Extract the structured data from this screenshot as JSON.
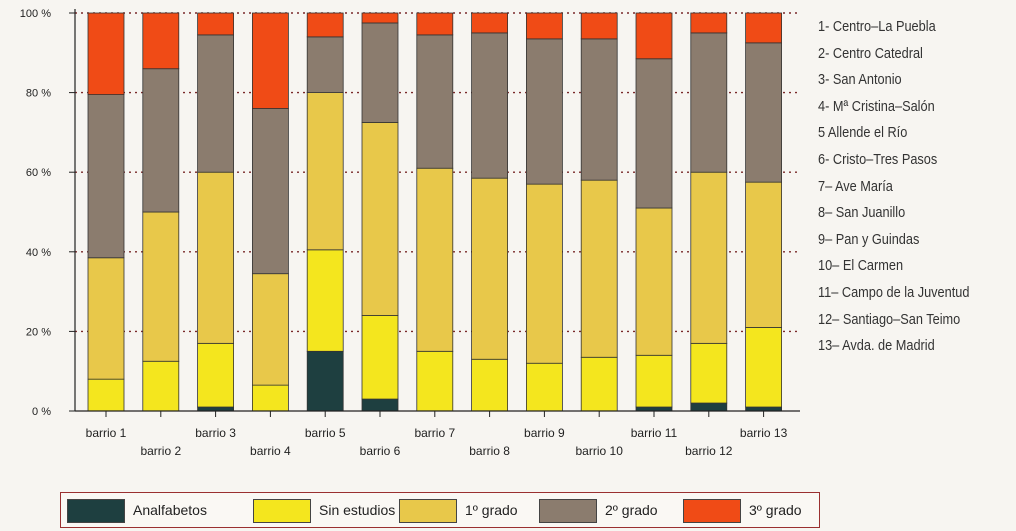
{
  "chart_data": {
    "type": "bar",
    "stacked": true,
    "categories": [
      "barrio 1",
      "barrio 2",
      "barrio 3",
      "barrio 4",
      "barrio 5",
      "barrio 6",
      "barrio 7",
      "barrio 8",
      "barrio 9",
      "barrio 10",
      "barrio 11",
      "barrio 12",
      "barrio 13"
    ],
    "series": [
      {
        "name": "Analfabetos",
        "color": "#1e3f40",
        "values": [
          0,
          0,
          1,
          0,
          15,
          3,
          0,
          0,
          0,
          0,
          1,
          2,
          1
        ]
      },
      {
        "name": "Sin estudios",
        "color": "#f4e61e",
        "values": [
          8,
          12.5,
          16,
          6.5,
          25.5,
          21,
          15,
          13,
          12,
          13.5,
          13,
          15,
          20
        ]
      },
      {
        "name": "1º grado",
        "color": "#e8c84a",
        "values": [
          30.5,
          37.5,
          43,
          28,
          39.5,
          48.5,
          46,
          45.5,
          45,
          44.5,
          37,
          43,
          36.5
        ]
      },
      {
        "name": "2º grado",
        "color": "#8b7c6e",
        "values": [
          41,
          36,
          34.5,
          41.5,
          14,
          25,
          33.5,
          36.5,
          36.5,
          35.5,
          37.5,
          35,
          35
        ]
      },
      {
        "name": "3º grado",
        "color": "#f04b16",
        "values": [
          20.5,
          14,
          5.5,
          24,
          6,
          2.5,
          5.5,
          5,
          6.5,
          6.5,
          11.5,
          5,
          7.5
        ]
      }
    ],
    "y_ticks": [
      "0 %",
      "20 %",
      "40 %",
      "60 %",
      "80 %",
      "100 %"
    ],
    "ylim": [
      0,
      100
    ],
    "grid": "dotted horizontal",
    "legend_position": "bottom",
    "key": [
      "1- Centro–La Puebla",
      "2- Centro Catedral",
      "3- San Antonio",
      "4- Mª Cristina–Salón",
      "5 Allende el Río",
      "6- Cristo–Tres Pasos",
      "7– Ave María",
      "8– San Juanillo",
      "9– Pan y Guindas",
      "10– El Carmen",
      "11– Campo de la Juventud",
      "12– Santiago–San Teimo",
      "13– Avda. de Madrid"
    ]
  }
}
